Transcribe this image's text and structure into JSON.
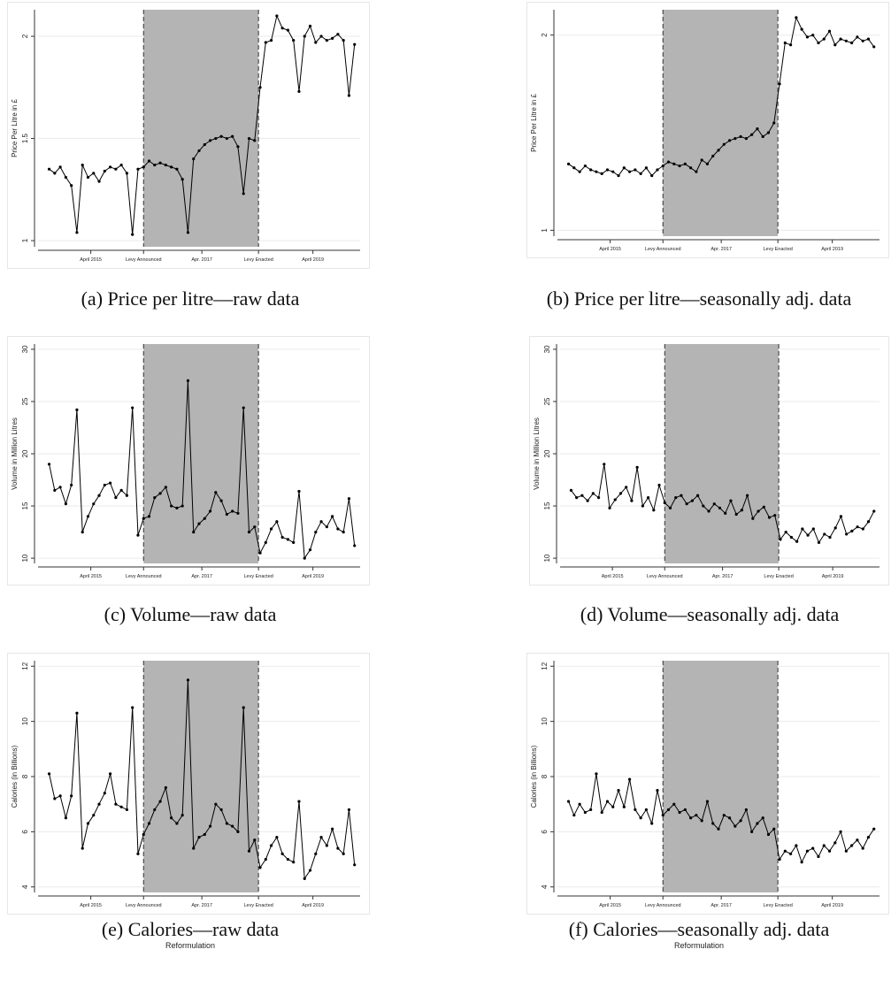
{
  "chart_data": [
    {
      "type": "line",
      "caption": "(a) Price per litre—raw data",
      "y_label": "Price Per Litre in £",
      "x": [
        2014.5,
        2014.6,
        2014.7,
        2014.8,
        2014.9,
        2015.0,
        2015.1,
        2015.2,
        2015.3,
        2015.4,
        2015.5,
        2015.6,
        2015.7,
        2015.8,
        2015.9,
        2016.0,
        2016.1,
        2016.2,
        2016.3,
        2016.4,
        2016.5,
        2016.6,
        2016.7,
        2016.8,
        2016.9,
        2017.0,
        2017.1,
        2017.2,
        2017.3,
        2017.4,
        2017.5,
        2017.6,
        2017.7,
        2017.8,
        2017.9,
        2018.0,
        2018.1,
        2018.2,
        2018.3,
        2018.4,
        2018.5,
        2018.6,
        2018.7,
        2018.8,
        2018.9,
        2019.0,
        2019.1,
        2019.2,
        2019.3,
        2019.4,
        2019.5,
        2019.6,
        2019.7,
        2019.8,
        2019.9,
        2020.0
      ],
      "series": [
        {
          "color": "#000000",
          "values": [
            1.35,
            1.33,
            1.36,
            1.31,
            1.27,
            1.04,
            1.37,
            1.31,
            1.33,
            1.29,
            1.34,
            1.36,
            1.35,
            1.37,
            1.33,
            1.03,
            1.35,
            1.36,
            1.39,
            1.37,
            1.38,
            1.37,
            1.36,
            1.35,
            1.3,
            1.04,
            1.4,
            1.44,
            1.47,
            1.49,
            1.5,
            1.51,
            1.5,
            1.51,
            1.46,
            1.23,
            1.5,
            1.49,
            1.75,
            1.97,
            1.98,
            2.1,
            2.04,
            2.03,
            1.98,
            1.73,
            2.0,
            2.05,
            1.97,
            2.0,
            1.98,
            1.99,
            2.01,
            1.98,
            1.71,
            1.96
          ]
        }
      ],
      "xlim": [
        2014.3,
        2020.1
      ],
      "xticks": [
        {
          "value": 2015.25,
          "label": "April 2015"
        },
        {
          "value": 2016.2,
          "label": "Levy Announced"
        },
        {
          "value": 2017.25,
          "label": "Apr. 2017"
        },
        {
          "value": 2018.27,
          "label": "Levy Enacted"
        },
        {
          "value": 2019.25,
          "label": "April 2019"
        }
      ],
      "ylim": [
        0.97,
        2.13
      ],
      "yticks": [
        1,
        1.5,
        2
      ],
      "grid": true,
      "shade": [
        2016.2,
        2018.27
      ],
      "shade_color": "#b4b4b4"
    },
    {
      "type": "line",
      "caption": "(b) Price per litre—seasonally adj. data",
      "y_label": "Price Per Litre in £",
      "x": [
        2014.5,
        2014.6,
        2014.7,
        2014.8,
        2014.9,
        2015.0,
        2015.1,
        2015.2,
        2015.3,
        2015.4,
        2015.5,
        2015.6,
        2015.7,
        2015.8,
        2015.9,
        2016.0,
        2016.1,
        2016.2,
        2016.3,
        2016.4,
        2016.5,
        2016.6,
        2016.7,
        2016.8,
        2016.9,
        2017.0,
        2017.1,
        2017.2,
        2017.3,
        2017.4,
        2017.5,
        2017.6,
        2017.7,
        2017.8,
        2017.9,
        2018.0,
        2018.1,
        2018.2,
        2018.3,
        2018.4,
        2018.5,
        2018.6,
        2018.7,
        2018.8,
        2018.9,
        2019.0,
        2019.1,
        2019.2,
        2019.3,
        2019.4,
        2019.5,
        2019.6,
        2019.7,
        2019.8,
        2019.9,
        2020.0
      ],
      "series": [
        {
          "color": "#000000",
          "values": [
            1.34,
            1.32,
            1.3,
            1.33,
            1.31,
            1.3,
            1.29,
            1.31,
            1.3,
            1.28,
            1.32,
            1.3,
            1.31,
            1.29,
            1.32,
            1.28,
            1.31,
            1.33,
            1.35,
            1.34,
            1.33,
            1.34,
            1.32,
            1.3,
            1.36,
            1.34,
            1.38,
            1.41,
            1.44,
            1.46,
            1.47,
            1.48,
            1.47,
            1.49,
            1.52,
            1.48,
            1.5,
            1.55,
            1.75,
            1.96,
            1.95,
            2.09,
            2.03,
            1.99,
            2.0,
            1.96,
            1.98,
            2.02,
            1.95,
            1.98,
            1.97,
            1.96,
            1.99,
            1.97,
            1.98,
            1.94
          ]
        }
      ],
      "xlim": [
        2014.3,
        2020.1
      ],
      "xticks": [
        {
          "value": 2015.25,
          "label": "April 2015"
        },
        {
          "value": 2016.2,
          "label": "Levy Announced"
        },
        {
          "value": 2017.25,
          "label": "Apr. 2017"
        },
        {
          "value": 2018.27,
          "label": "Levy Enacted"
        },
        {
          "value": 2019.25,
          "label": "April 2019"
        }
      ],
      "ylim": [
        0.97,
        2.13
      ],
      "yticks": [
        1,
        2
      ],
      "grid": true,
      "shade": [
        2016.2,
        2018.27
      ],
      "shade_color": "#b4b4b4"
    },
    {
      "type": "line",
      "caption": "(c) Volume—raw data",
      "y_label": "Volume in Million Litres",
      "x": [
        2014.5,
        2014.6,
        2014.7,
        2014.8,
        2014.9,
        2015.0,
        2015.1,
        2015.2,
        2015.3,
        2015.4,
        2015.5,
        2015.6,
        2015.7,
        2015.8,
        2015.9,
        2016.0,
        2016.1,
        2016.2,
        2016.3,
        2016.4,
        2016.5,
        2016.6,
        2016.7,
        2016.8,
        2016.9,
        2017.0,
        2017.1,
        2017.2,
        2017.3,
        2017.4,
        2017.5,
        2017.6,
        2017.7,
        2017.8,
        2017.9,
        2018.0,
        2018.1,
        2018.2,
        2018.3,
        2018.4,
        2018.5,
        2018.6,
        2018.7,
        2018.8,
        2018.9,
        2019.0,
        2019.1,
        2019.2,
        2019.3,
        2019.4,
        2019.5,
        2019.6,
        2019.7,
        2019.8,
        2019.9,
        2020.0
      ],
      "series": [
        {
          "color": "#000000",
          "values": [
            19.0,
            16.5,
            16.8,
            15.2,
            17.0,
            24.2,
            12.5,
            14.0,
            15.2,
            16.0,
            17.0,
            17.2,
            15.8,
            16.5,
            16.0,
            24.4,
            12.2,
            13.8,
            14.0,
            15.8,
            16.2,
            16.8,
            15.0,
            14.8,
            15.0,
            27.0,
            12.5,
            13.3,
            13.8,
            14.5,
            16.3,
            15.5,
            14.2,
            14.5,
            14.3,
            24.4,
            12.5,
            13.0,
            10.5,
            11.5,
            12.8,
            13.5,
            12.0,
            11.8,
            11.5,
            16.4,
            10.0,
            10.8,
            12.5,
            13.5,
            13.0,
            14.0,
            12.8,
            12.5,
            15.7,
            11.2
          ]
        }
      ],
      "xlim": [
        2014.3,
        2020.1
      ],
      "xticks": [
        {
          "value": 2015.25,
          "label": "April 2015"
        },
        {
          "value": 2016.2,
          "label": "Levy Announced"
        },
        {
          "value": 2017.25,
          "label": "Apr. 2017"
        },
        {
          "value": 2018.27,
          "label": "Levy Enacted"
        },
        {
          "value": 2019.25,
          "label": "April 2019"
        }
      ],
      "ylim": [
        9.5,
        30.5
      ],
      "yticks": [
        10,
        15,
        20,
        25,
        30
      ],
      "grid": true,
      "shade": [
        2016.2,
        2018.27
      ],
      "shade_color": "#b4b4b4"
    },
    {
      "type": "line",
      "caption": "(d) Volume—seasonally adj. data",
      "y_label": "Volume in Million Litres",
      "x": [
        2014.5,
        2014.6,
        2014.7,
        2014.8,
        2014.9,
        2015.0,
        2015.1,
        2015.2,
        2015.3,
        2015.4,
        2015.5,
        2015.6,
        2015.7,
        2015.8,
        2015.9,
        2016.0,
        2016.1,
        2016.2,
        2016.3,
        2016.4,
        2016.5,
        2016.6,
        2016.7,
        2016.8,
        2016.9,
        2017.0,
        2017.1,
        2017.2,
        2017.3,
        2017.4,
        2017.5,
        2017.6,
        2017.7,
        2017.8,
        2017.9,
        2018.0,
        2018.1,
        2018.2,
        2018.3,
        2018.4,
        2018.5,
        2018.6,
        2018.7,
        2018.8,
        2018.9,
        2019.0,
        2019.1,
        2019.2,
        2019.3,
        2019.4,
        2019.5,
        2019.6,
        2019.7,
        2019.8,
        2019.9,
        2020.0
      ],
      "series": [
        {
          "color": "#000000",
          "values": [
            16.5,
            15.8,
            16.0,
            15.5,
            16.2,
            15.8,
            19.0,
            14.8,
            15.6,
            16.2,
            16.8,
            15.5,
            18.7,
            15.0,
            15.8,
            14.6,
            17.0,
            15.3,
            14.8,
            15.8,
            16.0,
            15.2,
            15.5,
            16.0,
            15.0,
            14.5,
            15.2,
            14.8,
            14.3,
            15.5,
            14.2,
            14.6,
            16.0,
            13.8,
            14.5,
            14.9,
            13.9,
            14.1,
            11.8,
            12.5,
            12.0,
            11.6,
            12.8,
            12.2,
            12.8,
            11.5,
            12.3,
            12.0,
            12.9,
            14.0,
            12.3,
            12.6,
            13.0,
            12.8,
            13.5,
            14.5
          ]
        }
      ],
      "xlim": [
        2014.3,
        2020.1
      ],
      "xticks": [
        {
          "value": 2015.25,
          "label": "April 2015"
        },
        {
          "value": 2016.2,
          "label": "Levy Announced"
        },
        {
          "value": 2017.25,
          "label": "Apr. 2017"
        },
        {
          "value": 2018.27,
          "label": "Levy Enacted"
        },
        {
          "value": 2019.25,
          "label": "April 2019"
        }
      ],
      "ylim": [
        9.5,
        30.5
      ],
      "yticks": [
        10,
        15,
        20,
        25,
        30
      ],
      "grid": true,
      "shade": [
        2016.2,
        2018.27
      ],
      "shade_color": "#b4b4b4"
    },
    {
      "type": "line",
      "caption": "(e) Calories—raw data",
      "annotation": "Reformulation",
      "y_label": "Calories (in Billions)",
      "x": [
        2014.5,
        2014.6,
        2014.7,
        2014.8,
        2014.9,
        2015.0,
        2015.1,
        2015.2,
        2015.3,
        2015.4,
        2015.5,
        2015.6,
        2015.7,
        2015.8,
        2015.9,
        2016.0,
        2016.1,
        2016.2,
        2016.3,
        2016.4,
        2016.5,
        2016.6,
        2016.7,
        2016.8,
        2016.9,
        2017.0,
        2017.1,
        2017.2,
        2017.3,
        2017.4,
        2017.5,
        2017.6,
        2017.7,
        2017.8,
        2017.9,
        2018.0,
        2018.1,
        2018.2,
        2018.3,
        2018.4,
        2018.5,
        2018.6,
        2018.7,
        2018.8,
        2018.9,
        2019.0,
        2019.1,
        2019.2,
        2019.3,
        2019.4,
        2019.5,
        2019.6,
        2019.7,
        2019.8,
        2019.9,
        2020.0
      ],
      "series": [
        {
          "color": "#000000",
          "values": [
            8.1,
            7.2,
            7.3,
            6.5,
            7.3,
            10.3,
            5.4,
            6.3,
            6.6,
            7.0,
            7.4,
            8.1,
            7.0,
            6.9,
            6.8,
            10.5,
            5.2,
            5.9,
            6.3,
            6.8,
            7.1,
            7.6,
            6.5,
            6.3,
            6.6,
            11.5,
            5.4,
            5.8,
            5.9,
            6.2,
            7.0,
            6.8,
            6.3,
            6.2,
            6.0,
            10.5,
            5.3,
            5.7,
            4.7,
            5.0,
            5.5,
            5.8,
            5.2,
            5.0,
            4.9,
            7.1,
            4.3,
            4.6,
            5.2,
            5.8,
            5.5,
            6.1,
            5.4,
            5.2,
            6.8,
            4.8
          ]
        }
      ],
      "xlim": [
        2014.3,
        2020.1
      ],
      "xticks": [
        {
          "value": 2015.25,
          "label": "April 2015"
        },
        {
          "value": 2016.2,
          "label": "Levy Announced"
        },
        {
          "value": 2017.25,
          "label": "Apr. 2017"
        },
        {
          "value": 2018.27,
          "label": "Levy Enacted"
        },
        {
          "value": 2019.25,
          "label": "April 2019"
        }
      ],
      "ylim": [
        3.8,
        12.2
      ],
      "yticks": [
        4,
        6,
        8,
        10,
        12
      ],
      "grid": true,
      "shade": [
        2016.2,
        2018.27
      ],
      "shade_color": "#b4b4b4"
    },
    {
      "type": "line",
      "caption": "(f) Calories—seasonally adj. data",
      "annotation": "Reformulation",
      "y_label": "Calories (in Billions)",
      "x": [
        2014.5,
        2014.6,
        2014.7,
        2014.8,
        2014.9,
        2015.0,
        2015.1,
        2015.2,
        2015.3,
        2015.4,
        2015.5,
        2015.6,
        2015.7,
        2015.8,
        2015.9,
        2016.0,
        2016.1,
        2016.2,
        2016.3,
        2016.4,
        2016.5,
        2016.6,
        2016.7,
        2016.8,
        2016.9,
        2017.0,
        2017.1,
        2017.2,
        2017.3,
        2017.4,
        2017.5,
        2017.6,
        2017.7,
        2017.8,
        2017.9,
        2018.0,
        2018.1,
        2018.2,
        2018.3,
        2018.4,
        2018.5,
        2018.6,
        2018.7,
        2018.8,
        2018.9,
        2019.0,
        2019.1,
        2019.2,
        2019.3,
        2019.4,
        2019.5,
        2019.6,
        2019.7,
        2019.8,
        2019.9,
        2020.0
      ],
      "series": [
        {
          "color": "#000000",
          "values": [
            7.1,
            6.6,
            7.0,
            6.7,
            6.8,
            8.1,
            6.7,
            7.1,
            6.9,
            7.5,
            6.9,
            7.9,
            6.8,
            6.5,
            6.8,
            6.3,
            7.5,
            6.6,
            6.8,
            7.0,
            6.7,
            6.8,
            6.5,
            6.6,
            6.4,
            7.1,
            6.3,
            6.1,
            6.6,
            6.5,
            6.2,
            6.4,
            6.8,
            6.0,
            6.3,
            6.5,
            5.9,
            6.1,
            5.0,
            5.3,
            5.2,
            5.5,
            4.9,
            5.3,
            5.4,
            5.1,
            5.5,
            5.3,
            5.6,
            6.0,
            5.3,
            5.5,
            5.7,
            5.4,
            5.8,
            6.1
          ]
        }
      ],
      "xlim": [
        2014.3,
        2020.1
      ],
      "xticks": [
        {
          "value": 2015.25,
          "label": "April 2015"
        },
        {
          "value": 2016.2,
          "label": "Levy Announced"
        },
        {
          "value": 2017.25,
          "label": "Apr. 2017"
        },
        {
          "value": 2018.27,
          "label": "Levy Enacted"
        },
        {
          "value": 2019.25,
          "label": "April 2019"
        }
      ],
      "ylim": [
        3.8,
        12.2
      ],
      "yticks": [
        4,
        6,
        8,
        10,
        12
      ],
      "grid": true,
      "shade": [
        2016.2,
        2018.27
      ],
      "shade_color": "#b4b4b4"
    }
  ]
}
